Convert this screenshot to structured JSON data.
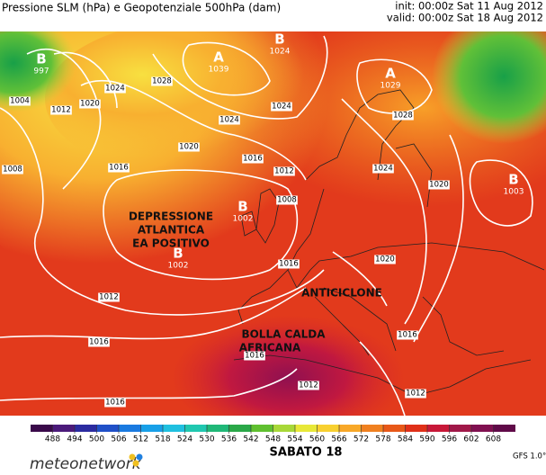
{
  "header": {
    "title": "Pressione SLM (hPa) e Geopotenziale 500hPa (dam)",
    "init": "init: 00:00z Sat 11 Aug 2012",
    "valid": "valid: 00:00z Sat 18 Aug 2012"
  },
  "pressure_centers": [
    {
      "letter": "B",
      "value": 997
    },
    {
      "letter": "A",
      "value": 1039
    },
    {
      "letter": "B",
      "value": 1024
    },
    {
      "letter": "A",
      "value": 1029
    },
    {
      "letter": "B",
      "value": 1003
    },
    {
      "letter": "B",
      "value": 1002
    },
    {
      "letter": "B",
      "value": 1002
    }
  ],
  "isobar_labels": [
    1004,
    1012,
    1020,
    1024,
    1028,
    1024,
    1028,
    1020,
    1016,
    1016,
    1012,
    1008,
    1016,
    1024,
    1020,
    1012,
    1016,
    1016,
    1012,
    1016,
    1012,
    1016,
    1024,
    1020,
    1008
  ],
  "annotations": [
    "DEPRESSIONE",
    "ATLANTICA",
    "EA POSITIVO",
    "ANTICICLONE",
    "BOLLA CALDA",
    "AFRICANA"
  ],
  "colorbar": {
    "labels": [
      488,
      494,
      500,
      506,
      512,
      518,
      524,
      530,
      536,
      542,
      548,
      554,
      560,
      566,
      572,
      578,
      584,
      590,
      596,
      602,
      608
    ],
    "colors": [
      "#3a0a4a",
      "#4b1a7a",
      "#2b2ba0",
      "#2050c8",
      "#1a7ae0",
      "#18a0e8",
      "#20c0e0",
      "#20c8b0",
      "#20b878",
      "#2aa848",
      "#60c030",
      "#a8d838",
      "#e8e838",
      "#f8d030",
      "#f8a828",
      "#f08020",
      "#e85818",
      "#e03018",
      "#c81838",
      "#a01848",
      "#801050",
      "#600a48"
    ]
  },
  "footer": {
    "day": "SABATO 18",
    "brand": "meteonetwork",
    "model": "GFS 1.0°"
  }
}
